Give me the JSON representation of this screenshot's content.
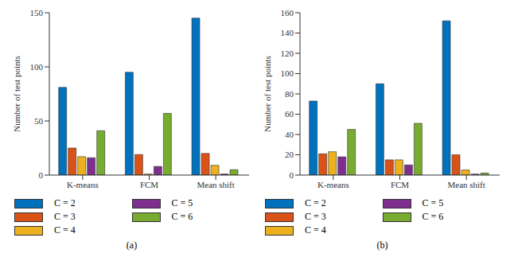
{
  "chart_data": [
    {
      "type": "bar",
      "title": "(a)",
      "ylabel": "Number of test points",
      "categories": [
        "K-means",
        "FCM",
        "Mean shift"
      ],
      "series": [
        {
          "name": "C = 2",
          "color": "#0072BD",
          "values": [
            81,
            95,
            145
          ]
        },
        {
          "name": "C = 3",
          "color": "#D95319",
          "values": [
            25,
            19,
            20
          ]
        },
        {
          "name": "C = 4",
          "color": "#EDB120",
          "values": [
            17,
            1,
            9
          ]
        },
        {
          "name": "C = 5",
          "color": "#7E2F8E",
          "values": [
            16,
            8,
            1
          ]
        },
        {
          "name": "C = 6",
          "color": "#77AC30",
          "values": [
            41,
            57,
            5
          ]
        }
      ],
      "ylim": [
        0,
        150
      ],
      "yticks": [
        0,
        50,
        100,
        150
      ],
      "grid": false,
      "legend": "bottom"
    },
    {
      "type": "bar",
      "title": "(b)",
      "ylabel": "Number of test points",
      "categories": [
        "K-means",
        "FCM",
        "Mean shift"
      ],
      "series": [
        {
          "name": "C = 2",
          "color": "#0072BD",
          "values": [
            73,
            90,
            152
          ]
        },
        {
          "name": "C = 3",
          "color": "#D95319",
          "values": [
            21,
            15,
            20
          ]
        },
        {
          "name": "C = 4",
          "color": "#EDB120",
          "values": [
            23,
            15,
            5
          ]
        },
        {
          "name": "C = 5",
          "color": "#7E2F8E",
          "values": [
            18,
            10,
            1
          ]
        },
        {
          "name": "C = 6",
          "color": "#77AC30",
          "values": [
            45,
            51,
            2
          ]
        }
      ],
      "ylim": [
        0,
        160
      ],
      "yticks": [
        0,
        20,
        40,
        60,
        80,
        100,
        120,
        140,
        160
      ],
      "grid": false,
      "legend": "bottom"
    }
  ]
}
